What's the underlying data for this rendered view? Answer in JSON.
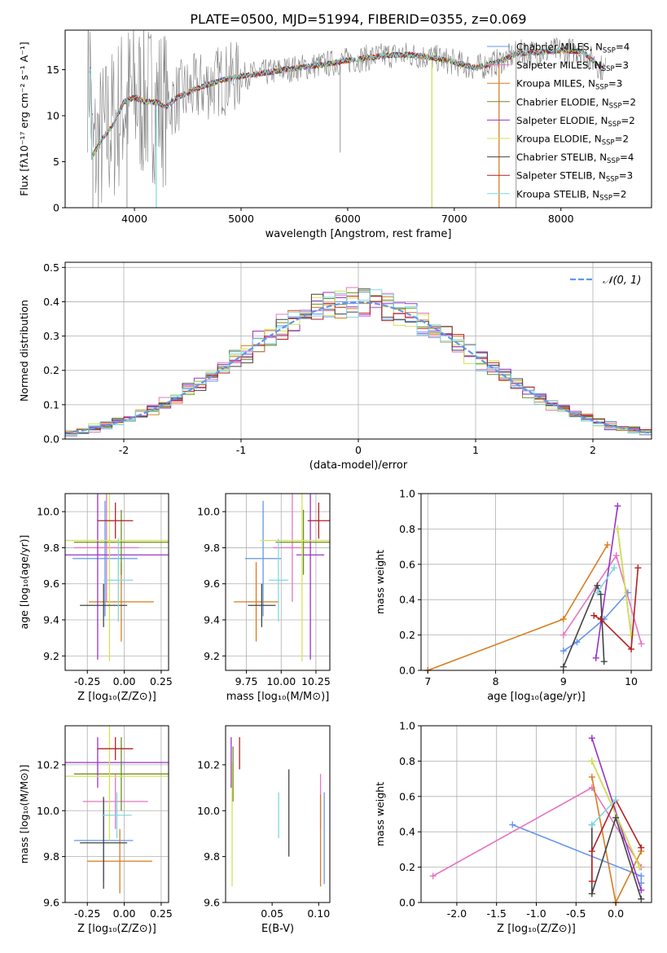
{
  "title": "PLATE=0500, MJD=51994, FIBERID=0355, z=0.069",
  "chart_data": [
    {
      "id": "spectrum",
      "type": "line",
      "xlabel": "wavelength [Angstrom, rest frame]",
      "ylabel": "Flux [fλ10⁻¹⁷ erg cm⁻² s⁻¹ A⁻¹]",
      "xlim": [
        3350,
        8850
      ],
      "ylim": [
        0,
        19.3
      ],
      "xticks": [
        4000,
        5000,
        6000,
        7000,
        8000
      ],
      "yticks": [
        0,
        5,
        10,
        15
      ],
      "grid": false,
      "legend_position": "right",
      "data_color": "#808080",
      "series": [
        {
          "name": "Chabrier MILES, N",
          "sub": "SSP",
          "suffix": "=4",
          "color": "#6495ED"
        },
        {
          "name": "Salpeter MILES, N",
          "sub": "SSP",
          "suffix": "=3",
          "color": "#E377C2"
        },
        {
          "name": "Kroupa MILES, N",
          "sub": "SSP",
          "suffix": "=3",
          "color": "#D87C1F"
        },
        {
          "name": "Chabrier ELODIE, N",
          "sub": "SSP",
          "suffix": "=2",
          "color": "#6B8E23"
        },
        {
          "name": "Salpeter ELODIE, N",
          "sub": "SSP",
          "suffix": "=2",
          "color": "#9932CC"
        },
        {
          "name": "Kroupa ELODIE, N",
          "sub": "SSP",
          "suffix": "=2",
          "color": "#D4E157"
        },
        {
          "name": "Chabrier STELIB, N",
          "sub": "SSP",
          "suffix": "=4",
          "color": "#444444"
        },
        {
          "name": "Salpeter STELIB, N",
          "sub": "SSP",
          "suffix": "=3",
          "color": "#B22222"
        },
        {
          "name": "Kroupa STELIB, N",
          "sub": "SSP",
          "suffix": "=2",
          "color": "#7FD8E0"
        }
      ],
      "continuum": {
        "x": [
          3600,
          3700,
          3800,
          3900,
          4000,
          4100,
          4200,
          4300,
          4400,
          4600,
          4800,
          5000,
          5200,
          5400,
          5600,
          5800,
          6000,
          6200,
          6400,
          6600,
          6800,
          7000,
          7200,
          7400,
          7600,
          7800,
          8000,
          8200,
          8400
        ],
        "y": [
          5.5,
          7.5,
          9.0,
          11.5,
          12.0,
          11.5,
          11.5,
          11.0,
          12.0,
          13.0,
          13.8,
          14.3,
          14.6,
          15.0,
          15.3,
          15.6,
          16.0,
          16.3,
          16.6,
          16.6,
          16.3,
          15.8,
          15.2,
          15.8,
          16.8,
          16.9,
          17.1,
          17.0,
          15.0
        ]
      }
    },
    {
      "id": "residuals",
      "type": "line",
      "xlabel": "(data-model)/error",
      "ylabel": "Normed distribution",
      "xlim": [
        -2.5,
        2.5
      ],
      "ylim": [
        0,
        0.515
      ],
      "xticks": [
        -2,
        -1,
        0,
        1,
        2
      ],
      "yticks": [
        0.0,
        0.1,
        0.2,
        0.3,
        0.4,
        0.5
      ],
      "grid": true,
      "legend_position": "upper right",
      "legend_label": "𝒩(0, 1)",
      "curve_color": "#6495ED"
    },
    {
      "id": "z-age",
      "type": "scatter",
      "xlabel": "Z [log₁₀(Z/Z⊙)]",
      "ylabel": "age  [log₁₀(age/yr)]",
      "xlim": [
        -0.4,
        0.3
      ],
      "ylim": [
        9.12,
        10.1
      ],
      "xticks": [
        -0.25,
        0.0,
        0.25
      ],
      "yticks": [
        9.2,
        9.4,
        9.6,
        9.8,
        10.0
      ],
      "grid": true,
      "points": [
        {
          "x": -0.13,
          "xerr": 0.22,
          "y": 9.74,
          "yerr": 0.32,
          "color": "#6495ED"
        },
        {
          "x": -0.12,
          "xerr": 0.22,
          "y": 9.8,
          "yerr": 0.3,
          "color": "#E377C2"
        },
        {
          "x": -0.02,
          "xerr": 0.22,
          "y": 9.5,
          "yerr": 0.22,
          "color": "#D87C1F"
        },
        {
          "x": -0.02,
          "xerr": 0.32,
          "y": 9.83,
          "yerr": 0.18,
          "color": "#6B8E23"
        },
        {
          "x": -0.18,
          "xerr": 0.48,
          "y": 9.76,
          "yerr": 0.58,
          "color": "#9932CC"
        },
        {
          "x": -0.1,
          "xerr": 0.42,
          "y": 9.84,
          "yerr": 0.67,
          "color": "#D4E157"
        },
        {
          "x": -0.14,
          "xerr": 0.16,
          "y": 9.48,
          "yerr": 0.12,
          "color": "#444444"
        },
        {
          "x": -0.06,
          "xerr": 0.12,
          "y": 9.95,
          "yerr": 0.1,
          "color": "#B22222"
        },
        {
          "x": -0.04,
          "xerr": 0.1,
          "y": 9.62,
          "yerr": 0.23,
          "color": "#7FD8E0"
        }
      ]
    },
    {
      "id": "mass-age",
      "type": "scatter",
      "xlabel": "mass [log₁₀(M/M⊙)]",
      "ylabel": "",
      "xlim": [
        9.6,
        10.35
      ],
      "ylim": [
        9.12,
        10.1
      ],
      "xticks": [
        9.75,
        10.0,
        10.25
      ],
      "yticks": [
        9.2,
        9.4,
        9.6,
        9.8,
        10.0
      ],
      "grid": true,
      "points": [
        {
          "x": 9.87,
          "xerr": 0.13,
          "y": 9.74,
          "yerr": 0.32,
          "color": "#6495ED"
        },
        {
          "x": 10.08,
          "xerr": 0.14,
          "y": 9.8,
          "yerr": 0.3,
          "color": "#E377C2"
        },
        {
          "x": 9.82,
          "xerr": 0.16,
          "y": 9.5,
          "yerr": 0.22,
          "color": "#D87C1F"
        },
        {
          "x": 10.16,
          "xerr": 0.2,
          "y": 9.83,
          "yerr": 0.18,
          "color": "#6B8E23"
        },
        {
          "x": 10.21,
          "xerr": 0.1,
          "y": 9.76,
          "yerr": 0.58,
          "color": "#9932CC"
        },
        {
          "x": 10.15,
          "xerr": 0.3,
          "y": 9.84,
          "yerr": 0.67,
          "color": "#D4E157"
        },
        {
          "x": 9.86,
          "xerr": 0.1,
          "y": 9.48,
          "yerr": 0.12,
          "color": "#444444"
        },
        {
          "x": 10.27,
          "xerr": 0.08,
          "y": 9.95,
          "yerr": 0.1,
          "color": "#B22222"
        },
        {
          "x": 9.98,
          "xerr": 0.07,
          "y": 9.62,
          "yerr": 0.23,
          "color": "#7FD8E0"
        }
      ]
    },
    {
      "id": "age-weight",
      "type": "line",
      "xlabel": "age  [log₁₀(age/yr)]",
      "ylabel": "mass weight",
      "xlim": [
        6.9,
        10.3
      ],
      "ylim": [
        0,
        1.0
      ],
      "xticks": [
        7,
        8,
        9,
        10
      ],
      "yticks": [
        0.0,
        0.2,
        0.4,
        0.6,
        0.8,
        1.0
      ],
      "grid": true,
      "series": [
        {
          "color": "#6495ED",
          "x": [
            9.0,
            9.2,
            9.6,
            9.95
          ],
          "y": [
            0.11,
            0.16,
            0.29,
            0.44
          ]
        },
        {
          "color": "#E377C2",
          "x": [
            9.0,
            9.78,
            10.15
          ],
          "y": [
            0.2,
            0.65,
            0.15
          ]
        },
        {
          "color": "#D87C1F",
          "x": [
            7.0,
            9.0,
            9.65
          ],
          "y": [
            0.0,
            0.29,
            0.71
          ]
        },
        {
          "color": "#6B8E23",
          "x": [
            9.8,
            10.0
          ],
          "y": [
            0.8,
            0.2
          ]
        },
        {
          "color": "#9932CC",
          "x": [
            9.48,
            9.8
          ],
          "y": [
            0.07,
            0.93
          ]
        },
        {
          "color": "#D4E157",
          "x": [
            9.8,
            10.0
          ],
          "y": [
            0.8,
            0.2
          ]
        },
        {
          "color": "#444444",
          "x": [
            9.0,
            9.5,
            9.55,
            9.6
          ],
          "y": [
            0.02,
            0.48,
            0.43,
            0.05
          ]
        },
        {
          "color": "#B22222",
          "x": [
            9.45,
            9.55,
            10.0,
            10.1
          ],
          "y": [
            0.31,
            0.29,
            0.12,
            0.58
          ]
        },
        {
          "color": "#7FD8E0",
          "x": [
            9.5,
            9.75
          ],
          "y": [
            0.44,
            0.58
          ]
        }
      ]
    },
    {
      "id": "z-mass",
      "type": "scatter",
      "xlabel": "Z [log₁₀(Z/Z⊙)]",
      "ylabel": "mass [log₁₀(M/M⊙)]",
      "xlim": [
        -0.4,
        0.3
      ],
      "ylim": [
        9.6,
        10.37
      ],
      "xticks": [
        -0.25,
        0.0,
        0.25
      ],
      "yticks": [
        9.6,
        9.8,
        10.0,
        10.2
      ],
      "grid": true,
      "points": [
        {
          "x": -0.14,
          "xerr": 0.2,
          "y": 9.87,
          "yerr": 0.18,
          "color": "#6495ED"
        },
        {
          "x": -0.06,
          "xerr": 0.22,
          "y": 10.04,
          "yerr": 0.12,
          "color": "#E377C2"
        },
        {
          "x": -0.03,
          "xerr": 0.22,
          "y": 9.78,
          "yerr": 0.14,
          "color": "#D87C1F"
        },
        {
          "x": -0.02,
          "xerr": 0.32,
          "y": 10.16,
          "yerr": 0.16,
          "color": "#6B8E23"
        },
        {
          "x": -0.18,
          "xerr": 0.48,
          "y": 10.21,
          "yerr": 0.11,
          "color": "#9932CC"
        },
        {
          "x": -0.1,
          "xerr": 0.42,
          "y": 10.15,
          "yerr": 0.28,
          "color": "#D4E157"
        },
        {
          "x": -0.14,
          "xerr": 0.16,
          "y": 9.86,
          "yerr": 0.2,
          "color": "#444444"
        },
        {
          "x": -0.06,
          "xerr": 0.12,
          "y": 10.27,
          "yerr": 0.05,
          "color": "#B22222"
        },
        {
          "x": -0.05,
          "xerr": 0.1,
          "y": 9.98,
          "yerr": 0.1,
          "color": "#7FD8E0"
        }
      ]
    },
    {
      "id": "ebv-mass",
      "type": "scatter",
      "xlabel": "E(B-V)",
      "ylabel": "",
      "xlim": [
        0.0,
        0.112
      ],
      "ylim": [
        9.6,
        10.37
      ],
      "xticks": [
        0.05,
        0.1
      ],
      "yticks": [
        9.6,
        9.8,
        10.0,
        10.2
      ],
      "grid": false,
      "points": [
        {
          "x": 0.106,
          "y": 9.88,
          "yerr": 0.2,
          "color": "#6495ED"
        },
        {
          "x": 0.102,
          "y": 10.04,
          "yerr": 0.12,
          "color": "#E377C2"
        },
        {
          "x": 0.102,
          "y": 9.87,
          "yerr": 0.2,
          "color": "#D87C1F"
        },
        {
          "x": 0.008,
          "y": 10.16,
          "yerr": 0.12,
          "color": "#6B8E23"
        },
        {
          "x": 0.006,
          "y": 10.21,
          "yerr": 0.11,
          "color": "#9932CC"
        },
        {
          "x": 0.007,
          "y": 9.94,
          "yerr": 0.27,
          "color": "#D4E157"
        },
        {
          "x": 0.068,
          "y": 9.99,
          "yerr": 0.19,
          "color": "#444444"
        },
        {
          "x": 0.015,
          "y": 10.25,
          "yerr": 0.07,
          "color": "#B22222"
        },
        {
          "x": 0.057,
          "y": 9.98,
          "yerr": 0.1,
          "color": "#7FD8E0"
        }
      ]
    },
    {
      "id": "z-weight",
      "type": "line",
      "xlabel": "Z [log₁₀(Z/Z⊙)]",
      "ylabel": "mass weight",
      "xlim": [
        -2.45,
        0.45
      ],
      "ylim": [
        0,
        1.0
      ],
      "xticks": [
        -2.0,
        -1.5,
        -1.0,
        -0.5,
        0.0
      ],
      "yticks": [
        0.0,
        0.2,
        0.4,
        0.6,
        0.8,
        1.0
      ],
      "grid": true,
      "series": [
        {
          "color": "#6495ED",
          "x": [
            -1.3,
            0.32,
            0.32
          ],
          "y": [
            0.44,
            0.15,
            0.11
          ]
        },
        {
          "color": "#E377C2",
          "x": [
            -2.3,
            -0.3,
            0.32
          ],
          "y": [
            0.15,
            0.65,
            0.2
          ]
        },
        {
          "color": "#D87C1F",
          "x": [
            -0.3,
            0.0,
            0.32
          ],
          "y": [
            0.71,
            0.0,
            0.29
          ]
        },
        {
          "color": "#6B8E23",
          "x": [
            -0.3,
            0.3
          ],
          "y": [
            0.8,
            0.2
          ]
        },
        {
          "color": "#9932CC",
          "x": [
            -0.3,
            0.32
          ],
          "y": [
            0.93,
            0.07
          ]
        },
        {
          "color": "#D4E157",
          "x": [
            -0.3,
            0.3
          ],
          "y": [
            0.8,
            0.2
          ]
        },
        {
          "color": "#444444",
          "x": [
            -0.3,
            -0.3,
            0.0,
            0.32
          ],
          "y": [
            0.44,
            0.05,
            0.48,
            0.02
          ]
        },
        {
          "color": "#B22222",
          "x": [
            -0.3,
            -0.3,
            0.0,
            0.32
          ],
          "y": [
            0.12,
            0.29,
            0.58,
            0.31
          ]
        },
        {
          "color": "#7FD8E0",
          "x": [
            -0.3,
            0.0
          ],
          "y": [
            0.44,
            0.58
          ]
        }
      ]
    }
  ]
}
